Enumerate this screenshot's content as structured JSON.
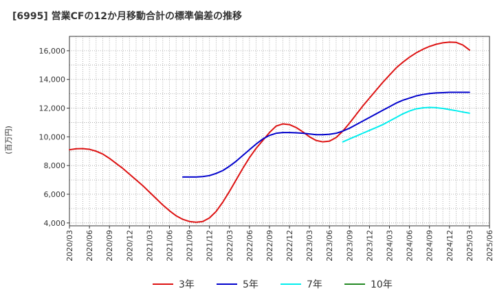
{
  "chart_data": {
    "type": "line",
    "title": "[6995]  営業CFの12か月移動合計の標準偏差の推移",
    "ylabel": "(百万円)",
    "xlabel": "",
    "ylim": [
      3800,
      17000
    ],
    "yticks": [
      4000,
      6000,
      8000,
      10000,
      12000,
      14000,
      16000
    ],
    "ytick_labels": [
      "4,000",
      "6,000",
      "8,000",
      "10,000",
      "12,000",
      "14,000",
      "16,000"
    ],
    "xticks": [
      "2020/03",
      "2020/06",
      "2020/09",
      "2020/12",
      "2021/03",
      "2021/06",
      "2021/09",
      "2021/12",
      "2022/03",
      "2022/06",
      "2022/09",
      "2022/12",
      "2023/03",
      "2023/06",
      "2023/09",
      "2023/12",
      "2024/03",
      "2024/06",
      "2024/09",
      "2024/12",
      "2025/03",
      "2025/06"
    ],
    "grid": true,
    "legend_position": "bottom",
    "series": [
      {
        "name": "3年",
        "color": "#dd1111",
        "points": [
          [
            "2020/03",
            9100
          ],
          [
            "2020/04",
            9170
          ],
          [
            "2020/05",
            9180
          ],
          [
            "2020/06",
            9130
          ],
          [
            "2020/07",
            9000
          ],
          [
            "2020/08",
            8800
          ],
          [
            "2020/09",
            8500
          ],
          [
            "2020/10",
            8150
          ],
          [
            "2020/11",
            7800
          ],
          [
            "2020/12",
            7400
          ],
          [
            "2021/01",
            7000
          ],
          [
            "2021/02",
            6600
          ],
          [
            "2021/03",
            6150
          ],
          [
            "2021/04",
            5700
          ],
          [
            "2021/05",
            5250
          ],
          [
            "2021/06",
            4850
          ],
          [
            "2021/07",
            4500
          ],
          [
            "2021/08",
            4250
          ],
          [
            "2021/09",
            4100
          ],
          [
            "2021/10",
            4050
          ],
          [
            "2021/11",
            4100
          ],
          [
            "2021/12",
            4350
          ],
          [
            "2022/01",
            4800
          ],
          [
            "2022/02",
            5450
          ],
          [
            "2022/03",
            6200
          ],
          [
            "2022/04",
            7000
          ],
          [
            "2022/05",
            7800
          ],
          [
            "2022/06",
            8550
          ],
          [
            "2022/07",
            9200
          ],
          [
            "2022/08",
            9750
          ],
          [
            "2022/09",
            10300
          ],
          [
            "2022/10",
            10750
          ],
          [
            "2022/11",
            10900
          ],
          [
            "2022/12",
            10850
          ],
          [
            "2023/01",
            10650
          ],
          [
            "2023/02",
            10350
          ],
          [
            "2023/03",
            10000
          ],
          [
            "2023/04",
            9750
          ],
          [
            "2023/05",
            9650
          ],
          [
            "2023/06",
            9700
          ],
          [
            "2023/07",
            9950
          ],
          [
            "2023/08",
            10400
          ],
          [
            "2023/09",
            10950
          ],
          [
            "2023/10",
            11550
          ],
          [
            "2023/11",
            12150
          ],
          [
            "2023/12",
            12700
          ],
          [
            "2024/01",
            13250
          ],
          [
            "2024/02",
            13800
          ],
          [
            "2024/03",
            14300
          ],
          [
            "2024/04",
            14800
          ],
          [
            "2024/05",
            15200
          ],
          [
            "2024/06",
            15550
          ],
          [
            "2024/07",
            15850
          ],
          [
            "2024/08",
            16100
          ],
          [
            "2024/09",
            16300
          ],
          [
            "2024/10",
            16450
          ],
          [
            "2024/11",
            16550
          ],
          [
            "2024/12",
            16600
          ],
          [
            "2025/01",
            16580
          ],
          [
            "2025/02",
            16400
          ],
          [
            "2025/03",
            16050
          ]
        ]
      },
      {
        "name": "5年",
        "color": "#0000cc",
        "points": [
          [
            "2021/08",
            7200
          ],
          [
            "2021/09",
            7200
          ],
          [
            "2021/10",
            7200
          ],
          [
            "2021/11",
            7230
          ],
          [
            "2021/12",
            7300
          ],
          [
            "2022/01",
            7450
          ],
          [
            "2022/02",
            7650
          ],
          [
            "2022/03",
            7950
          ],
          [
            "2022/04",
            8300
          ],
          [
            "2022/05",
            8700
          ],
          [
            "2022/06",
            9100
          ],
          [
            "2022/07",
            9500
          ],
          [
            "2022/08",
            9850
          ],
          [
            "2022/09",
            10100
          ],
          [
            "2022/10",
            10250
          ],
          [
            "2022/11",
            10300
          ],
          [
            "2022/12",
            10300
          ],
          [
            "2023/01",
            10280
          ],
          [
            "2023/02",
            10250
          ],
          [
            "2023/03",
            10200
          ],
          [
            "2023/04",
            10150
          ],
          [
            "2023/05",
            10150
          ],
          [
            "2023/06",
            10180
          ],
          [
            "2023/07",
            10250
          ],
          [
            "2023/08",
            10400
          ],
          [
            "2023/09",
            10600
          ],
          [
            "2023/10",
            10850
          ],
          [
            "2023/11",
            11100
          ],
          [
            "2023/12",
            11350
          ],
          [
            "2024/01",
            11600
          ],
          [
            "2024/02",
            11850
          ],
          [
            "2024/03",
            12100
          ],
          [
            "2024/04",
            12350
          ],
          [
            "2024/05",
            12550
          ],
          [
            "2024/06",
            12700
          ],
          [
            "2024/07",
            12850
          ],
          [
            "2024/08",
            12950
          ],
          [
            "2024/09",
            13020
          ],
          [
            "2024/10",
            13060
          ],
          [
            "2024/11",
            13080
          ],
          [
            "2024/12",
            13100
          ],
          [
            "2025/01",
            13100
          ],
          [
            "2025/02",
            13100
          ],
          [
            "2025/03",
            13100
          ]
        ]
      },
      {
        "name": "7年",
        "color": "#00eeee",
        "points": [
          [
            "2023/08",
            9650
          ],
          [
            "2023/09",
            9850
          ],
          [
            "2023/10",
            10050
          ],
          [
            "2023/11",
            10250
          ],
          [
            "2023/12",
            10450
          ],
          [
            "2024/01",
            10650
          ],
          [
            "2024/02",
            10850
          ],
          [
            "2024/03",
            11100
          ],
          [
            "2024/04",
            11350
          ],
          [
            "2024/05",
            11600
          ],
          [
            "2024/06",
            11800
          ],
          [
            "2024/07",
            11950
          ],
          [
            "2024/08",
            12020
          ],
          [
            "2024/09",
            12050
          ],
          [
            "2024/10",
            12030
          ],
          [
            "2024/11",
            11980
          ],
          [
            "2024/12",
            11900
          ],
          [
            "2025/01",
            11820
          ],
          [
            "2025/02",
            11730
          ],
          [
            "2025/03",
            11650
          ]
        ]
      },
      {
        "name": "10年",
        "color": "#228822",
        "points": []
      }
    ]
  }
}
